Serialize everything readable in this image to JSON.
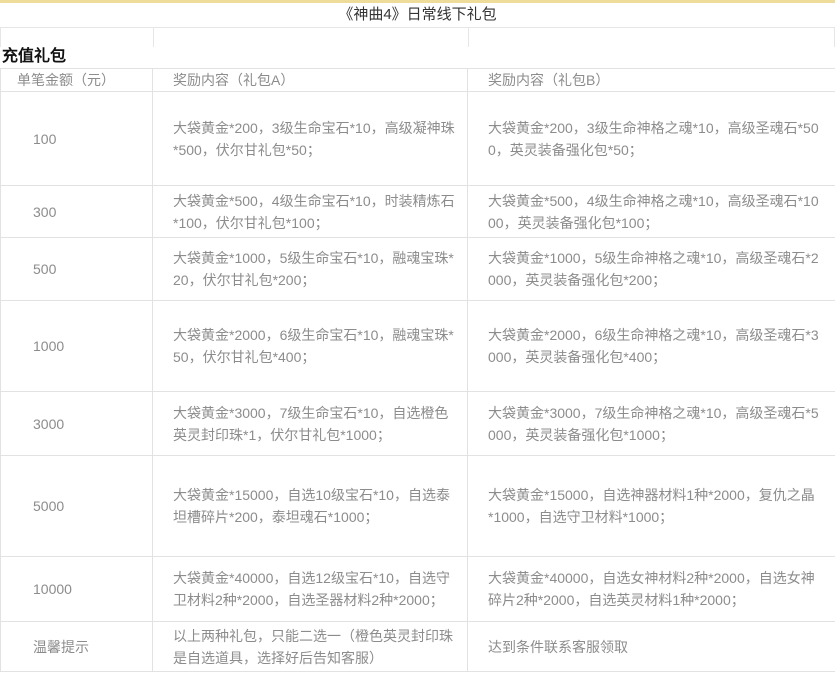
{
  "title": "《神曲4》日常线下礼包",
  "section_title": "充值礼包",
  "colors": {
    "accent_bar": "#eedc9a",
    "table_border": "#e2e2e2",
    "body_text": "#8c8c8c",
    "title_text": "#333333"
  },
  "table": {
    "headers": {
      "amount": "单笔金额（元）",
      "reward_a": "奖励内容（礼包A）",
      "reward_b": "奖励内容（礼包B）"
    },
    "rows": [
      {
        "amount": "100",
        "reward_a": "大袋黄金*200，3级生命宝石*10，高级凝神珠*500，伏尔甘礼包*50；",
        "reward_b": "大袋黄金*200，3级生命神格之魂*10，高级圣魂石*500，英灵装备强化包*50；"
      },
      {
        "amount": "300",
        "reward_a": "大袋黄金*500，4级生命宝石*10，时装精炼石*100，伏尔甘礼包*100；",
        "reward_b": "大袋黄金*500，4级生命神格之魂*10，高级圣魂石*1000，英灵装备强化包*100；"
      },
      {
        "amount": "500",
        "reward_a": "大袋黄金*1000，5级生命宝石*10，融魂宝珠*20，伏尔甘礼包*200；",
        "reward_b": "大袋黄金*1000，5级生命神格之魂*10，高级圣魂石*2000，英灵装备强化包*200；"
      },
      {
        "amount": "1000",
        "reward_a": "大袋黄金*2000，6级生命宝石*10，融魂宝珠*50，伏尔甘礼包*400；",
        "reward_b": "大袋黄金*2000，6级生命神格之魂*10，高级圣魂石*3000，英灵装备强化包*400；"
      },
      {
        "amount": "3000",
        "reward_a": "大袋黄金*3000，7级生命宝石*10，自选橙色英灵封印珠*1，伏尔甘礼包*1000；",
        "reward_b": "大袋黄金*3000，7级生命神格之魂*10，高级圣魂石*5000，英灵装备强化包*1000；"
      },
      {
        "amount": "5000",
        "reward_a": "大袋黄金*15000，自选10级宝石*10，自选泰坦槽碎片*200，泰坦魂石*1000；",
        "reward_b": "大袋黄金*15000，自选神器材料1种*2000，复仇之晶*1000，自选守卫材料*1000；"
      },
      {
        "amount": "10000",
        "reward_a": "大袋黄金*40000，自选12级宝石*10，自选守卫材料2种*2000，自选圣器材料2种*2000；",
        "reward_b": "大袋黄金*40000，自选女神材料2种*2000，自选女神碎片2种*2000，自选英灵材料1种*2000；"
      },
      {
        "amount": "温馨提示",
        "reward_a": "以上两种礼包，只能二选一（橙色英灵封印珠是自选道具，选择好后告知客服）",
        "reward_b": "达到条件联系客服领取"
      }
    ]
  }
}
